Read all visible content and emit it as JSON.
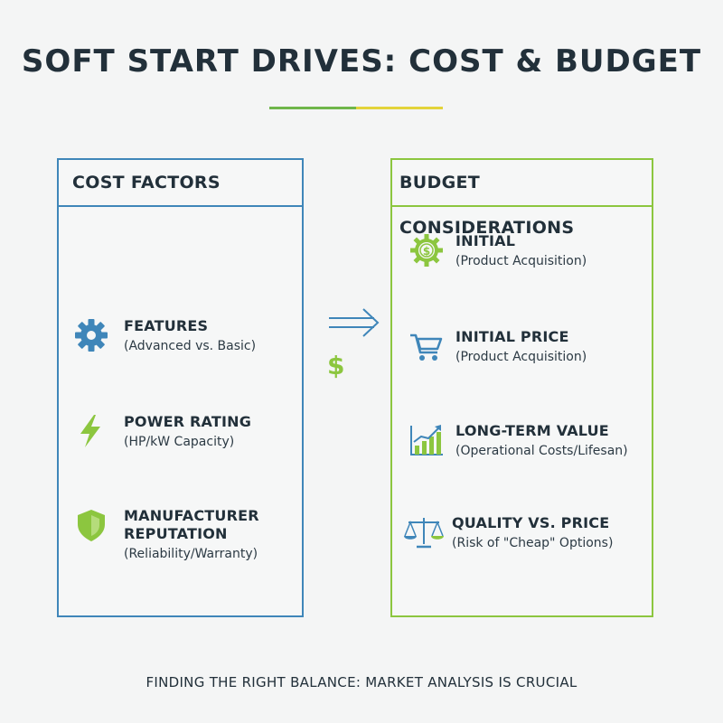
{
  "title": "SOFT START DRIVES: COST & BUDGET",
  "colors": {
    "blue": "#3f86b9",
    "green": "#8cc63f",
    "yellow": "#e3d33a",
    "text": "#22303a"
  },
  "cost_factors": {
    "heading": "COST FACTORS",
    "items": [
      {
        "label": "FEATURES",
        "sub": "(Advanced vs. Basic)",
        "icon": "gear-icon"
      },
      {
        "label": "POWER RATING",
        "sub": "(HP/kW Capacity)",
        "icon": "lightning-bolt-icon"
      },
      {
        "label": "MANUFACTURER REPUTATION",
        "sub": "(Reliability/Warranty)",
        "icon": "shield-icon"
      }
    ]
  },
  "budget_considerations": {
    "heading": "BUDGET CONSIDERATIONS",
    "items": [
      {
        "label": "INITIAL",
        "sub": "(Product Acquisition)",
        "icon": "dollar-coin-gear-icon"
      },
      {
        "label": "INITIAL PRICE",
        "sub": "(Product Acquisition)",
        "icon": "shopping-cart-icon"
      },
      {
        "label": "LONG-TERM VALUE",
        "sub": "(Operational Costs/Lifesan)",
        "icon": "growth-chart-icon"
      },
      {
        "label": "QUALITY VS. PRICE",
        "sub": "(Risk of \"Cheap\" Options)",
        "icon": "balance-scale-icon"
      }
    ]
  },
  "connector": {
    "symbol": "$",
    "icon": "double-arrow-icon"
  },
  "footer": "FINDING THE RIGHT BALANCE: MARKET ANALYSIS IS CRUCIAL"
}
